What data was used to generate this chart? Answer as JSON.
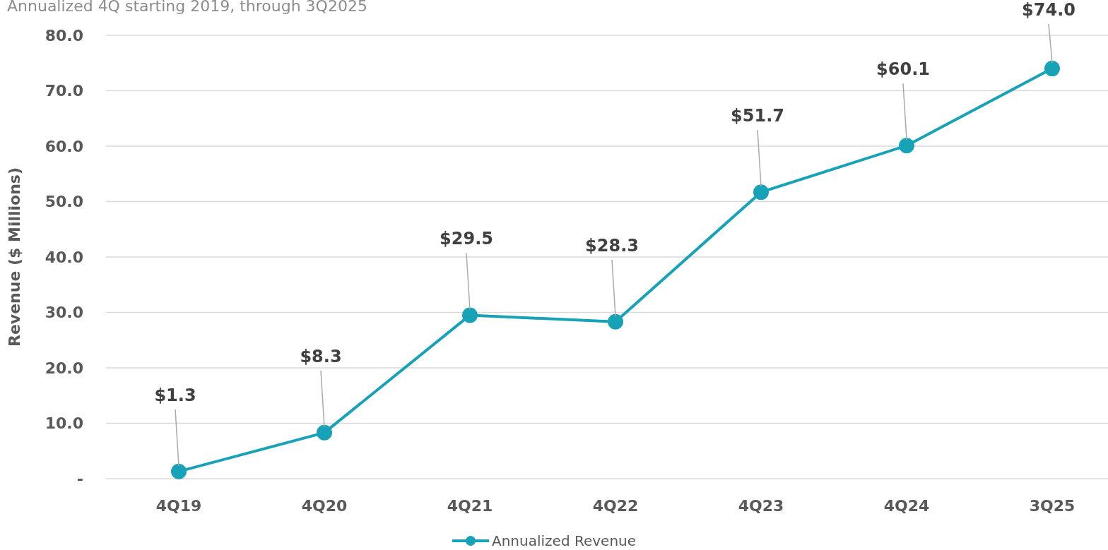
{
  "chart_data": {
    "type": "line",
    "subtitle": "Annualized 4Q starting 2019, through 3Q2025",
    "ylabel": "Revenue ($ Millions)",
    "categories": [
      "4Q19",
      "4Q20",
      "4Q21",
      "4Q22",
      "4Q23",
      "4Q24",
      "3Q25"
    ],
    "series": [
      {
        "name": "Annualized Revenue",
        "color": "#17a2b8",
        "values": [
          1.3,
          8.3,
          29.5,
          28.3,
          51.7,
          60.1,
          74.0
        ],
        "value_labels": [
          "$1.3",
          "$8.3",
          "$29.5",
          "$28.3",
          "$51.7",
          "$60.1",
          "$74.0"
        ]
      }
    ],
    "ylim": [
      0,
      80
    ],
    "yticks": [
      {
        "value": 0,
        "label": "-"
      },
      {
        "value": 10,
        "label": "10.0"
      },
      {
        "value": 20,
        "label": "20.0"
      },
      {
        "value": 30,
        "label": "30.0"
      },
      {
        "value": 40,
        "label": "40.0"
      },
      {
        "value": 50,
        "label": "50.0"
      },
      {
        "value": 60,
        "label": "60.0"
      },
      {
        "value": 70,
        "label": "70.0"
      },
      {
        "value": 80,
        "label": "80.0"
      }
    ],
    "grid": "y",
    "legend": "bottom",
    "marker": "circle",
    "line_style": "solid"
  }
}
